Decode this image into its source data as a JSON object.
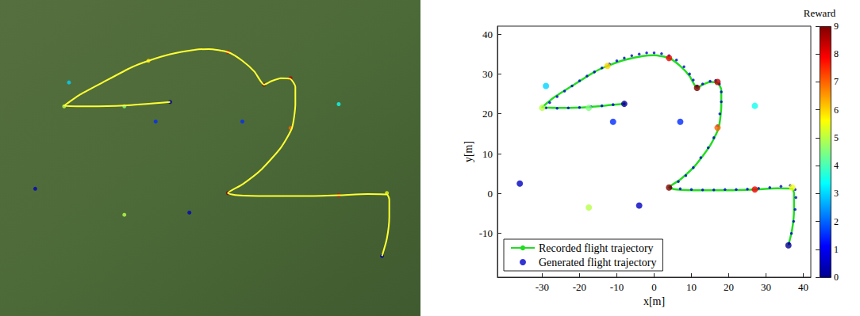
{
  "chart_data": {
    "type": "scatter",
    "xlabel": "x[m]",
    "ylabel": "y[m]",
    "xlim": [
      -42,
      42
    ],
    "xticks": [
      -30,
      -20,
      -10,
      0,
      10,
      20,
      30,
      40
    ],
    "ylim": [
      -21,
      42
    ],
    "yticks": [
      -10,
      0,
      10,
      20,
      30,
      40
    ],
    "grid": false,
    "legend": "lower left",
    "series": [
      {
        "name": "Recorded flight trajectory",
        "type": "line",
        "color": "#22dd22",
        "line_style": "solid",
        "x": [
          -8,
          -17.5,
          -25,
          -30,
          -27,
          -22,
          -16,
          -12.5,
          -8,
          -3,
          0,
          4,
          7,
          9.5,
          11.5,
          13,
          15,
          17,
          18,
          18,
          17.3,
          15,
          11,
          7,
          4,
          6,
          12,
          20,
          27,
          33,
          37,
          37.5,
          37.5,
          37,
          36
        ],
        "y": [
          22.5,
          21.7,
          21.5,
          21.6,
          24,
          27,
          30.5,
          32,
          33.5,
          34.5,
          34.7,
          34,
          32,
          29.5,
          26.5,
          27.3,
          28,
          27.8,
          26,
          22,
          16.5,
          12,
          7,
          3.5,
          1.5,
          1,
          0.8,
          0.8,
          1,
          1.3,
          1.2,
          0,
          -4,
          -9,
          -13
        ]
      },
      {
        "name": "Generated flight trajectory",
        "type": "scatter",
        "color": "#0000cc",
        "marker": "circle",
        "x": [
          -8,
          -11,
          -14,
          -17,
          -20,
          -23,
          -26,
          -29,
          -28,
          -26,
          -24,
          -22,
          -20,
          -18,
          -16,
          -14,
          -12,
          -10,
          -8,
          -6,
          -4,
          -2,
          0,
          2,
          4,
          6,
          8,
          9.5,
          10.5,
          11.5,
          13,
          15,
          16.5,
          17.5,
          18,
          18,
          17.6,
          17,
          16,
          14.5,
          12.5,
          10.5,
          8.5,
          6.5,
          4.5,
          7,
          10,
          13,
          16,
          19,
          22,
          25,
          28,
          31,
          34,
          36.5,
          37.8,
          38,
          37.8,
          37.4,
          36.8,
          36.2
        ],
        "y": [
          22.5,
          22.3,
          22,
          21.8,
          21.6,
          21.5,
          21.4,
          21.5,
          22.8,
          24.3,
          25.7,
          27,
          28.3,
          29.5,
          30.5,
          31.5,
          32.5,
          33.3,
          34,
          34.6,
          35,
          35.3,
          35.3,
          35.1,
          34.6,
          33.5,
          31.8,
          30,
          28.5,
          27,
          27.5,
          28.2,
          28.4,
          27.5,
          25.5,
          23,
          20,
          17,
          14,
          11.5,
          9,
          6.5,
          4.5,
          3,
          1.5,
          1.2,
          1,
          0.9,
          0.9,
          1,
          1,
          1.1,
          1.3,
          1.5,
          1.8,
          2,
          1,
          -1,
          -4,
          -7,
          -10,
          -12.5
        ]
      }
    ],
    "reward_points": {
      "x": [
        -8,
        -17.5,
        -30,
        -29,
        -12.5,
        4,
        11.5,
        17,
        17,
        27,
        -11,
        7,
        4,
        27,
        37,
        36,
        -36,
        -17.5,
        -4
      ],
      "y": [
        22.5,
        21.5,
        21.5,
        27,
        32,
        34,
        26.5,
        28,
        16.5,
        22,
        18,
        18,
        1.5,
        1,
        1.5,
        -13,
        2.5,
        -3.5,
        -3
      ],
      "reward": [
        0,
        4.5,
        5,
        3,
        6,
        8,
        9,
        8.5,
        7,
        3.5,
        1.5,
        1.5,
        9,
        8,
        5.5,
        0,
        0.5,
        5,
        0.5
      ]
    },
    "colorbar": {
      "title": "Reward",
      "range": [
        0,
        9
      ],
      "ticks": [
        0,
        1,
        2,
        3,
        4,
        5,
        6,
        7,
        8,
        9
      ]
    }
  }
}
